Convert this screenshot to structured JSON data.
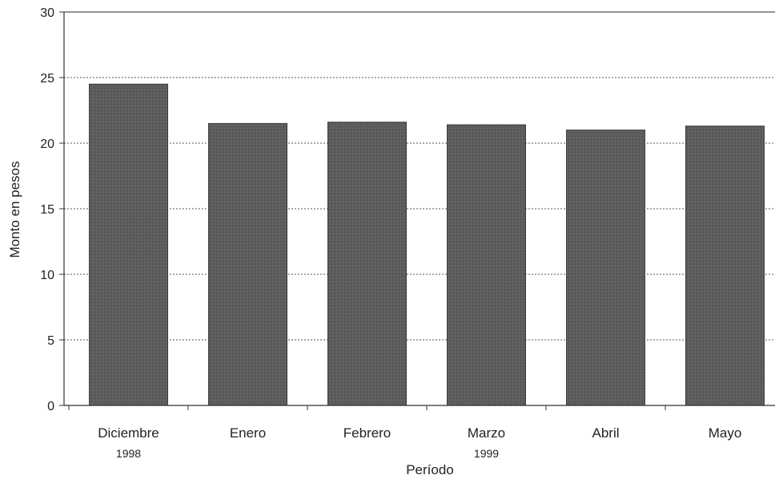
{
  "chart_data": {
    "type": "bar",
    "categories": [
      "Diciembre",
      "Enero",
      "Febrero",
      "Marzo",
      "Abril",
      "Mayo"
    ],
    "year_labels": [
      {
        "category_index": 0,
        "text": "1998"
      },
      {
        "category_index": 3,
        "text": "1999"
      }
    ],
    "values": [
      24.5,
      21.5,
      21.6,
      21.4,
      21.0,
      21.3
    ],
    "xlabel": "Período",
    "ylabel": "Monto en pesos",
    "ylim": [
      0,
      30
    ],
    "yticks": [
      0,
      5,
      10,
      15,
      20,
      25,
      30
    ],
    "grid": true,
    "colors": {
      "bar": "#5a5a5a",
      "bar_edge": "#3c3c3c",
      "grid": "#555555",
      "axis": "#333333"
    }
  }
}
